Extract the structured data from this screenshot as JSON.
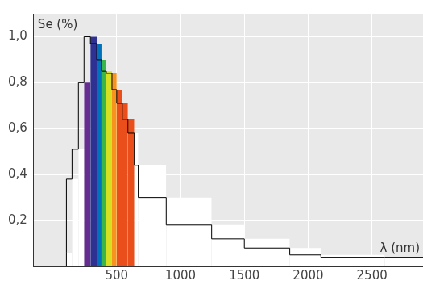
{
  "chart_data": {
    "type": "histogram",
    "x_label": "λ (nm)",
    "y_label": "Se (%)",
    "bins": [
      106,
      150,
      200,
      244,
      294,
      344,
      381,
      419,
      463,
      500,
      544,
      588,
      638,
      669,
      888,
      1244,
      1500,
      1856,
      2100,
      2600,
      2900
    ],
    "values": [
      0.06,
      0.38,
      0.51,
      0.8,
      1.0,
      0.97,
      0.9,
      0.85,
      0.84,
      0.77,
      0.71,
      0.64,
      0.58,
      0.44,
      0.3,
      0.18,
      0.12,
      0.08,
      0.05,
      0.04
    ],
    "colors": [
      "#ffffff",
      "#ffffff",
      "#ffffff",
      "#662d91",
      "#2e3192",
      "#0072bc",
      "#39b54a",
      "#d7df23",
      "#f7941d",
      "#e94e1b",
      "#e94e1b",
      "#e94e1b",
      "#ffffff",
      "#ffffff",
      "#ffffff",
      "#ffffff",
      "#ffffff",
      "#ffffff",
      "#ffffff",
      "#ffffff"
    ],
    "xlim": [
      -150,
      2900
    ],
    "ylim": [
      0,
      1.1
    ],
    "xticks": [
      500,
      1000,
      1500,
      2000,
      2500
    ],
    "yticks": [
      {
        "value": 0.2,
        "label": "0,2"
      },
      {
        "value": 0.4,
        "label": "0,4"
      },
      {
        "value": 0.6,
        "label": "0,6"
      },
      {
        "value": 0.8,
        "label": "0,8"
      },
      {
        "value": 1.0,
        "label": "1,0"
      }
    ],
    "grid": true
  }
}
